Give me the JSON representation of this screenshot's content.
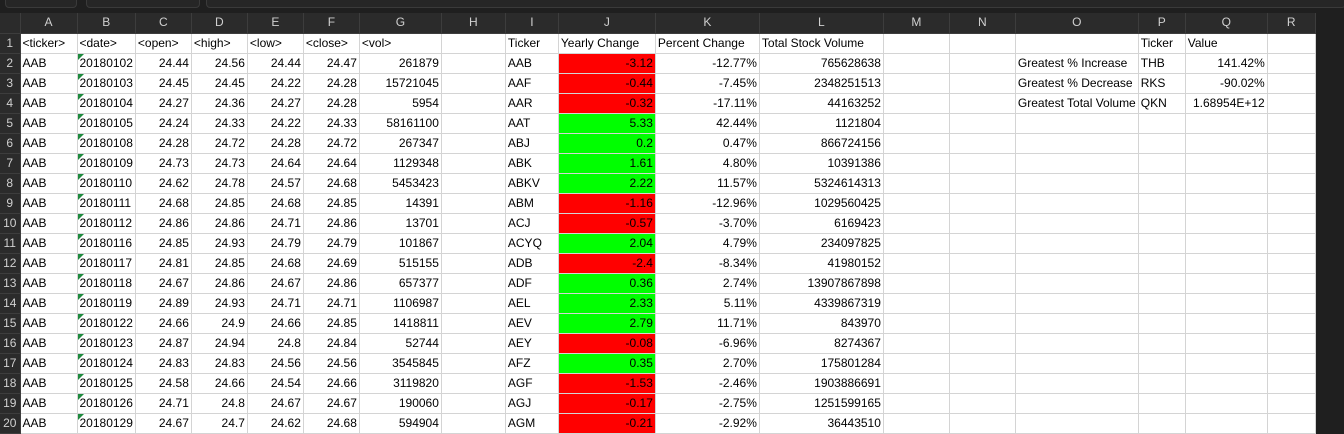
{
  "columns": [
    "A",
    "B",
    "C",
    "D",
    "E",
    "F",
    "G",
    "H",
    "I",
    "J",
    "K",
    "L",
    "M",
    "N",
    "O",
    "P",
    "Q",
    "R"
  ],
  "rows": [
    {
      "num": "1",
      "A": "<ticker>",
      "B": "<date>",
      "C": "<open>",
      "D": "<high>",
      "E": "<low>",
      "F": "<close>",
      "G": "<vol>",
      "I": "Ticker",
      "J": "Yearly Change",
      "K": "Percent Change",
      "L": "Total Stock Volume",
      "P": "Ticker",
      "Q": "Value"
    },
    {
      "num": "2",
      "A": "AAB",
      "B": "20180102",
      "C": "24.44",
      "D": "24.56",
      "E": "24.44",
      "F": "24.47",
      "G": "261879",
      "I": "AAB",
      "J": "-3.12",
      "K": "-12.77%",
      "L": "765628638",
      "O": "Greatest % Increase",
      "P": "THB",
      "Q": "141.42%"
    },
    {
      "num": "3",
      "A": "AAB",
      "B": "20180103",
      "C": "24.45",
      "D": "24.45",
      "E": "24.22",
      "F": "24.28",
      "G": "15721045",
      "I": "AAF",
      "J": "-0.44",
      "K": "-7.45%",
      "L": "2348251513",
      "O": "Greatest % Decrease",
      "P": "RKS",
      "Q": "-90.02%"
    },
    {
      "num": "4",
      "A": "AAB",
      "B": "20180104",
      "C": "24.27",
      "D": "24.36",
      "E": "24.27",
      "F": "24.28",
      "G": "5954",
      "I": "AAR",
      "J": "-0.32",
      "K": "-17.11%",
      "L": "44163252",
      "O": "Greatest Total Volume",
      "P": "QKN",
      "Q": "1.68954E+12"
    },
    {
      "num": "5",
      "A": "AAB",
      "B": "20180105",
      "C": "24.24",
      "D": "24.33",
      "E": "24.22",
      "F": "24.33",
      "G": "58161100",
      "I": "AAT",
      "J": "5.33",
      "K": "42.44%",
      "L": "1121804"
    },
    {
      "num": "6",
      "A": "AAB",
      "B": "20180108",
      "C": "24.28",
      "D": "24.72",
      "E": "24.28",
      "F": "24.72",
      "G": "267347",
      "I": "ABJ",
      "J": "0.2",
      "K": "0.47%",
      "L": "866724156"
    },
    {
      "num": "7",
      "A": "AAB",
      "B": "20180109",
      "C": "24.73",
      "D": "24.73",
      "E": "24.64",
      "F": "24.64",
      "G": "1129348",
      "I": "ABK",
      "J": "1.61",
      "K": "4.80%",
      "L": "10391386"
    },
    {
      "num": "8",
      "A": "AAB",
      "B": "20180110",
      "C": "24.62",
      "D": "24.78",
      "E": "24.57",
      "F": "24.68",
      "G": "5453423",
      "I": "ABKV",
      "J": "2.22",
      "K": "11.57%",
      "L": "5324614313"
    },
    {
      "num": "9",
      "A": "AAB",
      "B": "20180111",
      "C": "24.68",
      "D": "24.85",
      "E": "24.68",
      "F": "24.85",
      "G": "14391",
      "I": "ABM",
      "J": "-1.16",
      "K": "-12.96%",
      "L": "1029560425"
    },
    {
      "num": "10",
      "A": "AAB",
      "B": "20180112",
      "C": "24.86",
      "D": "24.86",
      "E": "24.71",
      "F": "24.86",
      "G": "13701",
      "I": "ACJ",
      "J": "-0.57",
      "K": "-3.70%",
      "L": "6169423"
    },
    {
      "num": "11",
      "A": "AAB",
      "B": "20180116",
      "C": "24.85",
      "D": "24.93",
      "E": "24.79",
      "F": "24.79",
      "G": "101867",
      "I": "ACYQ",
      "J": "2.04",
      "K": "4.79%",
      "L": "234097825"
    },
    {
      "num": "12",
      "A": "AAB",
      "B": "20180117",
      "C": "24.81",
      "D": "24.85",
      "E": "24.68",
      "F": "24.69",
      "G": "515155",
      "I": "ADB",
      "J": "-2.4",
      "K": "-8.34%",
      "L": "41980152"
    },
    {
      "num": "13",
      "A": "AAB",
      "B": "20180118",
      "C": "24.67",
      "D": "24.86",
      "E": "24.67",
      "F": "24.86",
      "G": "657377",
      "I": "ADF",
      "J": "0.36",
      "K": "2.74%",
      "L": "13907867898"
    },
    {
      "num": "14",
      "A": "AAB",
      "B": "20180119",
      "C": "24.89",
      "D": "24.93",
      "E": "24.71",
      "F": "24.71",
      "G": "1106987",
      "I": "AEL",
      "J": "2.33",
      "K": "5.11%",
      "L": "4339867319"
    },
    {
      "num": "15",
      "A": "AAB",
      "B": "20180122",
      "C": "24.66",
      "D": "24.9",
      "E": "24.66",
      "F": "24.85",
      "G": "1418811",
      "I": "AEV",
      "J": "2.79",
      "K": "11.71%",
      "L": "843970"
    },
    {
      "num": "16",
      "A": "AAB",
      "B": "20180123",
      "C": "24.87",
      "D": "24.94",
      "E": "24.8",
      "F": "24.84",
      "G": "52744",
      "I": "AEY",
      "J": "-0.08",
      "K": "-6.96%",
      "L": "8274367"
    },
    {
      "num": "17",
      "A": "AAB",
      "B": "20180124",
      "C": "24.83",
      "D": "24.83",
      "E": "24.56",
      "F": "24.56",
      "G": "3545845",
      "I": "AFZ",
      "J": "0.35",
      "K": "2.70%",
      "L": "175801284"
    },
    {
      "num": "18",
      "A": "AAB",
      "B": "20180125",
      "C": "24.58",
      "D": "24.66",
      "E": "24.54",
      "F": "24.66",
      "G": "3119820",
      "I": "AGF",
      "J": "-1.53",
      "K": "-2.46%",
      "L": "1903886691"
    },
    {
      "num": "19",
      "A": "AAB",
      "B": "20180126",
      "C": "24.71",
      "D": "24.8",
      "E": "24.67",
      "F": "24.67",
      "G": "190060",
      "I": "AGJ",
      "J": "-0.17",
      "K": "-2.75%",
      "L": "1251599165"
    },
    {
      "num": "20",
      "A": "AAB",
      "B": "20180129",
      "C": "24.67",
      "D": "24.7",
      "E": "24.62",
      "F": "24.68",
      "G": "594904",
      "I": "AGM",
      "J": "-0.21",
      "K": "-2.92%",
      "L": "36443510"
    }
  ],
  "colors": {
    "positive_fill": "#00ff00",
    "negative_fill": "#ff0000",
    "header_bg": "#2b2b2b",
    "gridline": "#d4d4d4"
  }
}
